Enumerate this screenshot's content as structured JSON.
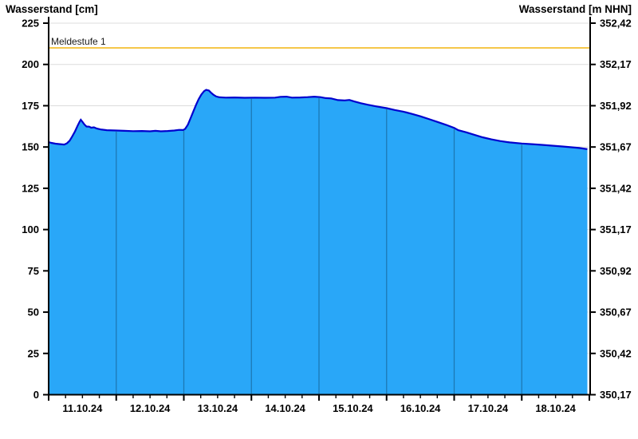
{
  "chart_data": {
    "type": "area",
    "title": "",
    "y_left": {
      "label": "Wasserstand [cm]",
      "ticks": [
        "0",
        "25",
        "50",
        "75",
        "100",
        "125",
        "150",
        "175",
        "200",
        "225"
      ],
      "min": 0,
      "max": 225,
      "tick_step_cm": 25
    },
    "y_right": {
      "label": "Wasserstand [m NHN]",
      "ticks": [
        "350,17",
        "350,42",
        "350,67",
        "350,92",
        "351,17",
        "351,42",
        "351,67",
        "351,92",
        "352,17",
        "352,42"
      ]
    },
    "x_axis": {
      "tick_labels": [
        "11.10.24",
        "12.10.24",
        "13.10.24",
        "14.10.24",
        "15.10.24",
        "16.10.24",
        "17.10.24",
        "18.10.24"
      ],
      "days": 8,
      "minor_ticks_per_day": 4
    },
    "threshold": {
      "label": "Meldestufe 1",
      "value_cm": 210,
      "color": "#f5c74a"
    },
    "legend": null,
    "grid": "horizontal-only",
    "series": [
      {
        "name": "Wasserstand",
        "unit": "cm",
        "x_unit": "days since 11.10.24 00:00",
        "points": [
          [
            0.0,
            153
          ],
          [
            0.04,
            152.5
          ],
          [
            0.1,
            152
          ],
          [
            0.17,
            151.7
          ],
          [
            0.23,
            151.5
          ],
          [
            0.27,
            152.2
          ],
          [
            0.31,
            153.8
          ],
          [
            0.35,
            156.5
          ],
          [
            0.39,
            159.5
          ],
          [
            0.43,
            163
          ],
          [
            0.46,
            165.5
          ],
          [
            0.475,
            166.5
          ],
          [
            0.5,
            165.2
          ],
          [
            0.53,
            163.6
          ],
          [
            0.56,
            162.4
          ],
          [
            0.6,
            162.3
          ],
          [
            0.63,
            161.7
          ],
          [
            0.67,
            161.9
          ],
          [
            0.71,
            161.2
          ],
          [
            0.77,
            160.6
          ],
          [
            0.86,
            160.2
          ],
          [
            1.0,
            160
          ],
          [
            1.12,
            159.8
          ],
          [
            1.25,
            159.6
          ],
          [
            1.38,
            159.7
          ],
          [
            1.5,
            159.5
          ],
          [
            1.58,
            159.8
          ],
          [
            1.66,
            159.5
          ],
          [
            1.76,
            159.7
          ],
          [
            1.86,
            160
          ],
          [
            1.93,
            160.4
          ],
          [
            1.99,
            160.3
          ],
          [
            2.02,
            161
          ],
          [
            2.06,
            163.5
          ],
          [
            2.1,
            167.5
          ],
          [
            2.14,
            171.5
          ],
          [
            2.18,
            175.5
          ],
          [
            2.22,
            179
          ],
          [
            2.26,
            181.8
          ],
          [
            2.3,
            183.8
          ],
          [
            2.33,
            184.6
          ],
          [
            2.37,
            184.2
          ],
          [
            2.4,
            183
          ],
          [
            2.44,
            181.6
          ],
          [
            2.48,
            180.6
          ],
          [
            2.53,
            180.1
          ],
          [
            2.62,
            179.9
          ],
          [
            2.75,
            180
          ],
          [
            2.9,
            179.8
          ],
          [
            3.05,
            179.9
          ],
          [
            3.2,
            179.8
          ],
          [
            3.35,
            179.9
          ],
          [
            3.43,
            180.4
          ],
          [
            3.52,
            180.5
          ],
          [
            3.6,
            179.9
          ],
          [
            3.72,
            180
          ],
          [
            3.83,
            180.2
          ],
          [
            3.93,
            180.5
          ],
          [
            4.02,
            180.2
          ],
          [
            4.1,
            179.6
          ],
          [
            4.18,
            179.4
          ],
          [
            4.28,
            178.4
          ],
          [
            4.38,
            178.2
          ],
          [
            4.45,
            178.5
          ],
          [
            4.52,
            177.6
          ],
          [
            4.62,
            176.5
          ],
          [
            4.72,
            175.6
          ],
          [
            4.85,
            174.6
          ],
          [
            5.0,
            173.5
          ],
          [
            5.12,
            172.4
          ],
          [
            5.25,
            171.4
          ],
          [
            5.38,
            170
          ],
          [
            5.5,
            168.6
          ],
          [
            5.62,
            167
          ],
          [
            5.75,
            165.2
          ],
          [
            5.88,
            163.4
          ],
          [
            6.0,
            161.6
          ],
          [
            6.06,
            160.2
          ],
          [
            6.18,
            158.9
          ],
          [
            6.3,
            157.4
          ],
          [
            6.42,
            155.9
          ],
          [
            6.55,
            154.6
          ],
          [
            6.68,
            153.6
          ],
          [
            6.82,
            152.8
          ],
          [
            7.0,
            152.1
          ],
          [
            7.15,
            151.7
          ],
          [
            7.3,
            151.3
          ],
          [
            7.45,
            150.8
          ],
          [
            7.6,
            150.3
          ],
          [
            7.72,
            149.9
          ],
          [
            7.85,
            149.4
          ],
          [
            7.97,
            148.7
          ]
        ]
      }
    ],
    "colors": {
      "fill": "#29a7f8",
      "line": "#0101ce",
      "day_divider": "#1d79b4",
      "grid": "#dcdcdc",
      "threshold": "#f5c74a",
      "axis": "#000000",
      "background": "#ffffff"
    }
  }
}
